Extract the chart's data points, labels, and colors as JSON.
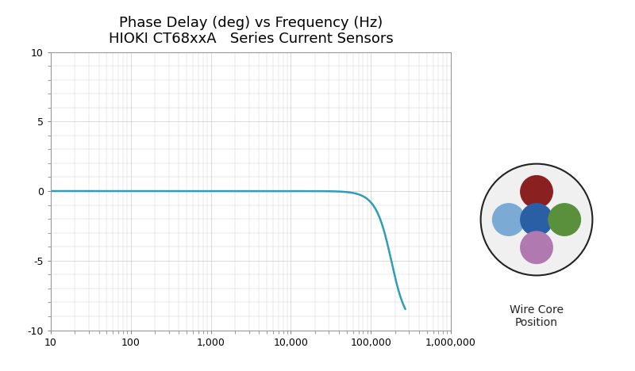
{
  "title_line1": "Phase Delay (deg) vs Frequency (Hz)",
  "title_line2": "HIOKI CT68xxA   Series Current Sensors",
  "title_fontsize": 13,
  "xmin": 10,
  "xmax": 1000000,
  "ymin": -10,
  "ymax": 10,
  "line_color": "#2e9db5",
  "line_width": 1.8,
  "bg_color": "#ffffff",
  "plot_bg_color": "#ffffff",
  "grid_color": "#cccccc",
  "wire_core_label": "Wire Core\nPosition",
  "dot_colors": [
    "#8b2020",
    "#7baad4",
    "#2b5fa5",
    "#5a8f3c",
    "#b07ab0"
  ],
  "dot_positions_norm": [
    [
      0.5,
      0.7
    ],
    [
      0.3,
      0.5
    ],
    [
      0.5,
      0.5
    ],
    [
      0.7,
      0.5
    ],
    [
      0.5,
      0.3
    ]
  ],
  "fc": 180000,
  "exponent": 3.5,
  "freq_end": 270000
}
